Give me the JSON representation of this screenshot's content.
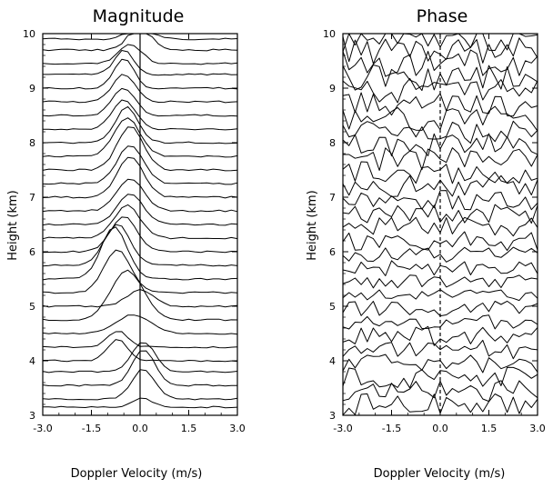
{
  "chart_data": [
    {
      "type": "line",
      "title": "Magnitude",
      "xlabel": "Doppler Velocity (m/s)",
      "ylabel": "Height (km)",
      "xlim": [
        -3.0,
        3.0
      ],
      "ylim": [
        3,
        10
      ],
      "x_ticks": [
        "-3.0",
        "-1.5",
        "0.0",
        "1.5",
        "3.0"
      ],
      "y_ticks": [
        "3",
        "4",
        "5",
        "6",
        "7",
        "8",
        "9",
        "10"
      ],
      "zero_line": true,
      "note": "stacked Doppler spectra, one trace per height gate; each trace offset to its height",
      "series": [
        {
          "height": 3.15,
          "peak_velocity": 0.1,
          "peak_width": 0.3,
          "peak_amplitude": 0.16
        },
        {
          "height": 3.3,
          "peak_velocity": 0.1,
          "peak_width": 0.35,
          "peak_amplitude": 0.55
        },
        {
          "height": 3.55,
          "peak_velocity": 0.1,
          "peak_width": 0.35,
          "peak_amplitude": 0.65
        },
        {
          "height": 3.8,
          "peak_velocity": 0.1,
          "peak_width": 0.35,
          "peak_amplitude": 0.55
        },
        {
          "height": 4.0,
          "peak_velocity": -0.7,
          "peak_width": 0.3,
          "peak_amplitude": 0.4
        },
        {
          "height": 4.25,
          "peak_velocity": -0.7,
          "peak_width": 0.3,
          "peak_amplitude": 0.3
        },
        {
          "height": 4.5,
          "peak_velocity": -0.2,
          "peak_width": 0.5,
          "peak_amplitude": 0.35
        },
        {
          "height": 4.75,
          "peak_velocity": -0.4,
          "peak_width": 0.5,
          "peak_amplitude": 0.9
        },
        {
          "height": 5.0,
          "peak_velocity": 0.0,
          "peak_width": 0.4,
          "peak_amplitude": 0.3
        },
        {
          "height": 5.25,
          "peak_velocity": -0.7,
          "peak_width": 0.4,
          "peak_amplitude": 0.8
        },
        {
          "height": 5.5,
          "peak_velocity": -0.8,
          "peak_width": 0.4,
          "peak_amplitude": 0.95
        },
        {
          "height": 5.75,
          "peak_velocity": -0.7,
          "peak_width": 0.4,
          "peak_amplitude": 0.75
        },
        {
          "height": 6.0,
          "peak_velocity": -0.5,
          "peak_width": 0.4,
          "peak_amplitude": 0.65
        },
        {
          "height": 6.25,
          "peak_velocity": -0.4,
          "peak_width": 0.4,
          "peak_amplitude": 0.6
        },
        {
          "height": 6.5,
          "peak_velocity": -0.3,
          "peak_width": 0.4,
          "peak_amplitude": 0.55
        },
        {
          "height": 6.75,
          "peak_velocity": -0.3,
          "peak_width": 0.4,
          "peak_amplitude": 0.6
        },
        {
          "height": 7.0,
          "peak_velocity": -0.3,
          "peak_width": 0.4,
          "peak_amplitude": 0.75
        },
        {
          "height": 7.25,
          "peak_velocity": -0.3,
          "peak_width": 0.4,
          "peak_amplitude": 0.7
        },
        {
          "height": 7.5,
          "peak_velocity": -0.3,
          "peak_width": 0.4,
          "peak_amplitude": 0.8
        },
        {
          "height": 7.75,
          "peak_velocity": -0.4,
          "peak_width": 0.4,
          "peak_amplitude": 0.7
        },
        {
          "height": 8.0,
          "peak_velocity": -0.4,
          "peak_width": 0.35,
          "peak_amplitude": 0.65
        },
        {
          "height": 8.25,
          "peak_velocity": -0.5,
          "peak_width": 0.35,
          "peak_amplitude": 0.55
        },
        {
          "height": 8.5,
          "peak_velocity": -0.5,
          "peak_width": 0.35,
          "peak_amplitude": 0.5
        },
        {
          "height": 8.75,
          "peak_velocity": -0.5,
          "peak_width": 0.35,
          "peak_amplitude": 0.5
        },
        {
          "height": 9.0,
          "peak_velocity": -0.5,
          "peak_width": 0.3,
          "peak_amplitude": 0.55
        },
        {
          "height": 9.25,
          "peak_velocity": -0.5,
          "peak_width": 0.3,
          "peak_amplitude": 0.45
        },
        {
          "height": 9.45,
          "peak_velocity": -0.3,
          "peak_width": 0.35,
          "peak_amplitude": 0.35
        },
        {
          "height": 9.7,
          "peak_velocity": 0.0,
          "peak_width": 0.35,
          "peak_amplitude": 0.45
        },
        {
          "height": 9.9,
          "peak_velocity": 0.0,
          "peak_width": 0.35,
          "peak_amplitude": 0.3
        }
      ]
    },
    {
      "type": "line",
      "title": "Phase",
      "xlabel": "Doppler Velocity (m/s)",
      "ylabel": "Height (km)",
      "xlim": [
        -3.0,
        3.0
      ],
      "ylim": [
        3,
        10
      ],
      "x_ticks": [
        "-3.0",
        "-1.5",
        "0.0",
        "1.5",
        "3.0"
      ],
      "y_ticks": [
        "3",
        "4",
        "5",
        "6",
        "7",
        "8",
        "9",
        "10"
      ],
      "zero_line": true,
      "zero_line_style": "dashed",
      "note": "stacked phase spectra, one noisy trace per height gate",
      "series": [
        {
          "height": 3.2,
          "jitter": 0.2
        },
        {
          "height": 3.45,
          "jitter": 0.2
        },
        {
          "height": 3.7,
          "jitter": 0.2
        },
        {
          "height": 3.95,
          "jitter": 0.18
        },
        {
          "height": 4.2,
          "jitter": 0.18
        },
        {
          "height": 4.45,
          "jitter": 0.18
        },
        {
          "height": 4.7,
          "jitter": 0.15
        },
        {
          "height": 4.95,
          "jitter": 0.15
        },
        {
          "height": 5.2,
          "jitter": 0.12
        },
        {
          "height": 5.45,
          "jitter": 0.12
        },
        {
          "height": 5.7,
          "jitter": 0.15
        },
        {
          "height": 5.95,
          "jitter": 0.15
        },
        {
          "height": 6.2,
          "jitter": 0.18
        },
        {
          "height": 6.45,
          "jitter": 0.18
        },
        {
          "height": 6.7,
          "jitter": 0.18
        },
        {
          "height": 6.95,
          "jitter": 0.2
        },
        {
          "height": 7.2,
          "jitter": 0.2
        },
        {
          "height": 7.45,
          "jitter": 0.2
        },
        {
          "height": 7.7,
          "jitter": 0.22
        },
        {
          "height": 7.95,
          "jitter": 0.22
        },
        {
          "height": 8.2,
          "jitter": 0.22
        },
        {
          "height": 8.45,
          "jitter": 0.24
        },
        {
          "height": 8.7,
          "jitter": 0.24
        },
        {
          "height": 8.95,
          "jitter": 0.24
        },
        {
          "height": 9.2,
          "jitter": 0.25
        },
        {
          "height": 9.45,
          "jitter": 0.25
        },
        {
          "height": 9.7,
          "jitter": 0.25
        },
        {
          "height": 9.9,
          "jitter": 0.25
        }
      ]
    }
  ]
}
